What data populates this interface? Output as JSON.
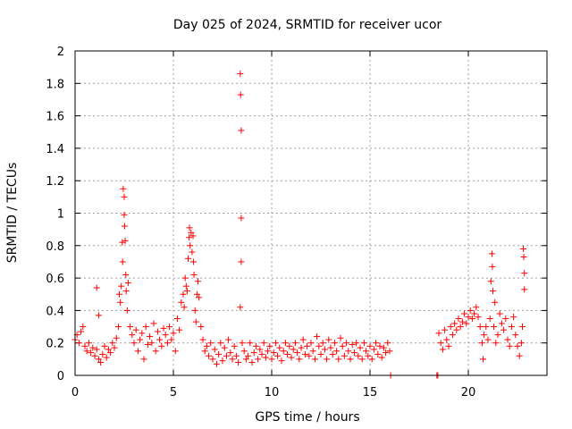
{
  "chart_data": {
    "type": "scatter",
    "title": "Day 025 of 2024, SRMTID for receiver ucor",
    "xlabel": "GPS time / hours",
    "ylabel": "SRMTID / TECUs",
    "xlim": [
      0,
      24
    ],
    "ylim": [
      0,
      2
    ],
    "xticks": [
      0,
      5,
      10,
      15,
      20
    ],
    "yticks": [
      0,
      0.2,
      0.4,
      0.6,
      0.8,
      1,
      1.2,
      1.4,
      1.6,
      1.8,
      2
    ],
    "xtick_labels": [
      "0",
      "5",
      "10",
      "15",
      "20"
    ],
    "ytick_labels": [
      "0",
      "0.2",
      "0.4",
      "0.6",
      "0.8",
      "1",
      "1.2",
      "1.4",
      "1.6",
      "1.8",
      "2"
    ],
    "grid": true,
    "marker": "plus",
    "color": "#ff0000",
    "series": [
      {
        "name": "SRMTID",
        "points": [
          [
            0.0,
            0.22
          ],
          [
            0.1,
            0.25
          ],
          [
            0.2,
            0.2
          ],
          [
            0.3,
            0.27
          ],
          [
            0.4,
            0.3
          ],
          [
            0.5,
            0.18
          ],
          [
            0.6,
            0.15
          ],
          [
            0.7,
            0.2
          ],
          [
            0.8,
            0.14
          ],
          [
            0.9,
            0.17
          ],
          [
            1.0,
            0.12
          ],
          [
            1.1,
            0.54
          ],
          [
            1.1,
            0.16
          ],
          [
            1.2,
            0.37
          ],
          [
            1.2,
            0.1
          ],
          [
            1.3,
            0.08
          ],
          [
            1.4,
            0.13
          ],
          [
            1.5,
            0.18
          ],
          [
            1.6,
            0.11
          ],
          [
            1.7,
            0.16
          ],
          [
            1.8,
            0.14
          ],
          [
            1.9,
            0.2
          ],
          [
            2.0,
            0.17
          ],
          [
            2.1,
            0.23
          ],
          [
            2.2,
            0.3
          ],
          [
            2.25,
            0.5
          ],
          [
            2.3,
            0.45
          ],
          [
            2.35,
            0.55
          ],
          [
            2.4,
            0.82
          ],
          [
            2.42,
            0.7
          ],
          [
            2.45,
            1.15
          ],
          [
            2.5,
            1.1
          ],
          [
            2.5,
            0.99
          ],
          [
            2.52,
            0.92
          ],
          [
            2.55,
            0.83
          ],
          [
            2.58,
            0.62
          ],
          [
            2.6,
            0.52
          ],
          [
            2.65,
            0.4
          ],
          [
            2.7,
            0.57
          ],
          [
            2.8,
            0.3
          ],
          [
            2.9,
            0.25
          ],
          [
            3.0,
            0.2
          ],
          [
            3.1,
            0.28
          ],
          [
            3.2,
            0.15
          ],
          [
            3.3,
            0.22
          ],
          [
            3.4,
            0.26
          ],
          [
            3.5,
            0.1
          ],
          [
            3.6,
            0.3
          ],
          [
            3.7,
            0.19
          ],
          [
            3.8,
            0.24
          ],
          [
            3.9,
            0.2
          ],
          [
            4.0,
            0.32
          ],
          [
            4.1,
            0.15
          ],
          [
            4.2,
            0.27
          ],
          [
            4.3,
            0.22
          ],
          [
            4.4,
            0.18
          ],
          [
            4.5,
            0.29
          ],
          [
            4.6,
            0.25
          ],
          [
            4.7,
            0.2
          ],
          [
            4.8,
            0.3
          ],
          [
            4.9,
            0.22
          ],
          [
            5.0,
            0.26
          ],
          [
            5.1,
            0.15
          ],
          [
            5.2,
            0.35
          ],
          [
            5.3,
            0.28
          ],
          [
            5.4,
            0.45
          ],
          [
            5.5,
            0.5
          ],
          [
            5.55,
            0.42
          ],
          [
            5.6,
            0.6
          ],
          [
            5.65,
            0.55
          ],
          [
            5.7,
            0.52
          ],
          [
            5.75,
            0.72
          ],
          [
            5.8,
            0.85
          ],
          [
            5.82,
            0.91
          ],
          [
            5.85,
            0.8
          ],
          [
            5.9,
            0.88
          ],
          [
            5.95,
            0.76
          ],
          [
            6.0,
            0.86
          ],
          [
            6.02,
            0.7
          ],
          [
            6.05,
            0.62
          ],
          [
            6.1,
            0.4
          ],
          [
            6.15,
            0.33
          ],
          [
            6.2,
            0.5
          ],
          [
            6.25,
            0.58
          ],
          [
            6.3,
            0.48
          ],
          [
            6.4,
            0.3
          ],
          [
            6.5,
            0.22
          ],
          [
            6.6,
            0.15
          ],
          [
            6.7,
            0.18
          ],
          [
            6.8,
            0.12
          ],
          [
            6.9,
            0.2
          ],
          [
            7.0,
            0.1
          ],
          [
            7.1,
            0.16
          ],
          [
            7.2,
            0.07
          ],
          [
            7.3,
            0.13
          ],
          [
            7.4,
            0.2
          ],
          [
            7.5,
            0.09
          ],
          [
            7.6,
            0.17
          ],
          [
            7.7,
            0.12
          ],
          [
            7.8,
            0.22
          ],
          [
            7.9,
            0.14
          ],
          [
            8.0,
            0.1
          ],
          [
            8.1,
            0.18
          ],
          [
            8.2,
            0.12
          ],
          [
            8.3,
            0.08
          ],
          [
            8.4,
            1.86
          ],
          [
            8.4,
            0.42
          ],
          [
            8.42,
            1.73
          ],
          [
            8.45,
            1.51
          ],
          [
            8.45,
            0.97
          ],
          [
            8.45,
            0.7
          ],
          [
            8.5,
            0.2
          ],
          [
            8.6,
            0.15
          ],
          [
            8.7,
            0.1
          ],
          [
            8.8,
            0.12
          ],
          [
            8.9,
            0.2
          ],
          [
            9.0,
            0.08
          ],
          [
            9.1,
            0.14
          ],
          [
            9.2,
            0.18
          ],
          [
            9.3,
            0.1
          ],
          [
            9.4,
            0.16
          ],
          [
            9.5,
            0.13
          ],
          [
            9.6,
            0.2
          ],
          [
            9.7,
            0.11
          ],
          [
            9.8,
            0.15
          ],
          [
            9.9,
            0.18
          ],
          [
            10.0,
            0.1
          ],
          [
            10.1,
            0.14
          ],
          [
            10.2,
            0.2
          ],
          [
            10.3,
            0.12
          ],
          [
            10.4,
            0.17
          ],
          [
            10.5,
            0.09
          ],
          [
            10.6,
            0.15
          ],
          [
            10.7,
            0.2
          ],
          [
            10.8,
            0.13
          ],
          [
            10.9,
            0.18
          ],
          [
            11.0,
            0.11
          ],
          [
            11.1,
            0.16
          ],
          [
            11.2,
            0.2
          ],
          [
            11.3,
            0.14
          ],
          [
            11.4,
            0.1
          ],
          [
            11.5,
            0.17
          ],
          [
            11.6,
            0.22
          ],
          [
            11.7,
            0.13
          ],
          [
            11.8,
            0.18
          ],
          [
            11.9,
            0.12
          ],
          [
            12.0,
            0.2
          ],
          [
            12.1,
            0.15
          ],
          [
            12.2,
            0.1
          ],
          [
            12.3,
            0.24
          ],
          [
            12.4,
            0.18
          ],
          [
            12.5,
            0.13
          ],
          [
            12.6,
            0.2
          ],
          [
            12.7,
            0.16
          ],
          [
            12.8,
            0.1
          ],
          [
            12.9,
            0.22
          ],
          [
            13.0,
            0.17
          ],
          [
            13.1,
            0.13
          ],
          [
            13.2,
            0.2
          ],
          [
            13.3,
            0.15
          ],
          [
            13.4,
            0.1
          ],
          [
            13.5,
            0.23
          ],
          [
            13.6,
            0.18
          ],
          [
            13.7,
            0.12
          ],
          [
            13.8,
            0.2
          ],
          [
            13.9,
            0.15
          ],
          [
            14.0,
            0.1
          ],
          [
            14.1,
            0.19
          ],
          [
            14.2,
            0.14
          ],
          [
            14.3,
            0.2
          ],
          [
            14.4,
            0.12
          ],
          [
            14.5,
            0.17
          ],
          [
            14.6,
            0.1
          ],
          [
            14.7,
            0.2
          ],
          [
            14.8,
            0.15
          ],
          [
            14.9,
            0.12
          ],
          [
            15.0,
            0.18
          ],
          [
            15.1,
            0.1
          ],
          [
            15.2,
            0.16
          ],
          [
            15.3,
            0.2
          ],
          [
            15.4,
            0.13
          ],
          [
            15.5,
            0.18
          ],
          [
            15.6,
            0.11
          ],
          [
            15.7,
            0.17
          ],
          [
            15.8,
            0.14
          ],
          [
            15.9,
            0.2
          ],
          [
            16.0,
            0.15
          ],
          [
            16.05,
            0.0
          ],
          [
            18.4,
            0.0
          ],
          [
            18.45,
            0.0
          ],
          [
            18.5,
            0.26
          ],
          [
            18.6,
            0.2
          ],
          [
            18.7,
            0.16
          ],
          [
            18.8,
            0.28
          ],
          [
            18.9,
            0.22
          ],
          [
            19.0,
            0.18
          ],
          [
            19.1,
            0.3
          ],
          [
            19.2,
            0.25
          ],
          [
            19.3,
            0.32
          ],
          [
            19.4,
            0.28
          ],
          [
            19.5,
            0.35
          ],
          [
            19.6,
            0.3
          ],
          [
            19.7,
            0.33
          ],
          [
            19.8,
            0.38
          ],
          [
            19.9,
            0.32
          ],
          [
            20.0,
            0.36
          ],
          [
            20.1,
            0.4
          ],
          [
            20.2,
            0.35
          ],
          [
            20.3,
            0.38
          ],
          [
            20.4,
            0.42
          ],
          [
            20.5,
            0.36
          ],
          [
            20.6,
            0.3
          ],
          [
            20.7,
            0.2
          ],
          [
            20.75,
            0.1
          ],
          [
            20.8,
            0.25
          ],
          [
            20.9,
            0.3
          ],
          [
            21.0,
            0.22
          ],
          [
            21.1,
            0.35
          ],
          [
            21.15,
            0.58
          ],
          [
            21.2,
            0.75
          ],
          [
            21.22,
            0.67
          ],
          [
            21.25,
            0.52
          ],
          [
            21.3,
            0.3
          ],
          [
            21.35,
            0.45
          ],
          [
            21.4,
            0.2
          ],
          [
            21.5,
            0.25
          ],
          [
            21.6,
            0.38
          ],
          [
            21.7,
            0.32
          ],
          [
            21.8,
            0.28
          ],
          [
            21.9,
            0.35
          ],
          [
            22.0,
            0.22
          ],
          [
            22.1,
            0.18
          ],
          [
            22.2,
            0.3
          ],
          [
            22.3,
            0.36
          ],
          [
            22.4,
            0.25
          ],
          [
            22.5,
            0.18
          ],
          [
            22.6,
            0.12
          ],
          [
            22.7,
            0.2
          ],
          [
            22.75,
            0.3
          ],
          [
            22.8,
            0.78
          ],
          [
            22.82,
            0.73
          ],
          [
            22.85,
            0.63
          ],
          [
            22.85,
            0.53
          ]
        ]
      }
    ]
  }
}
